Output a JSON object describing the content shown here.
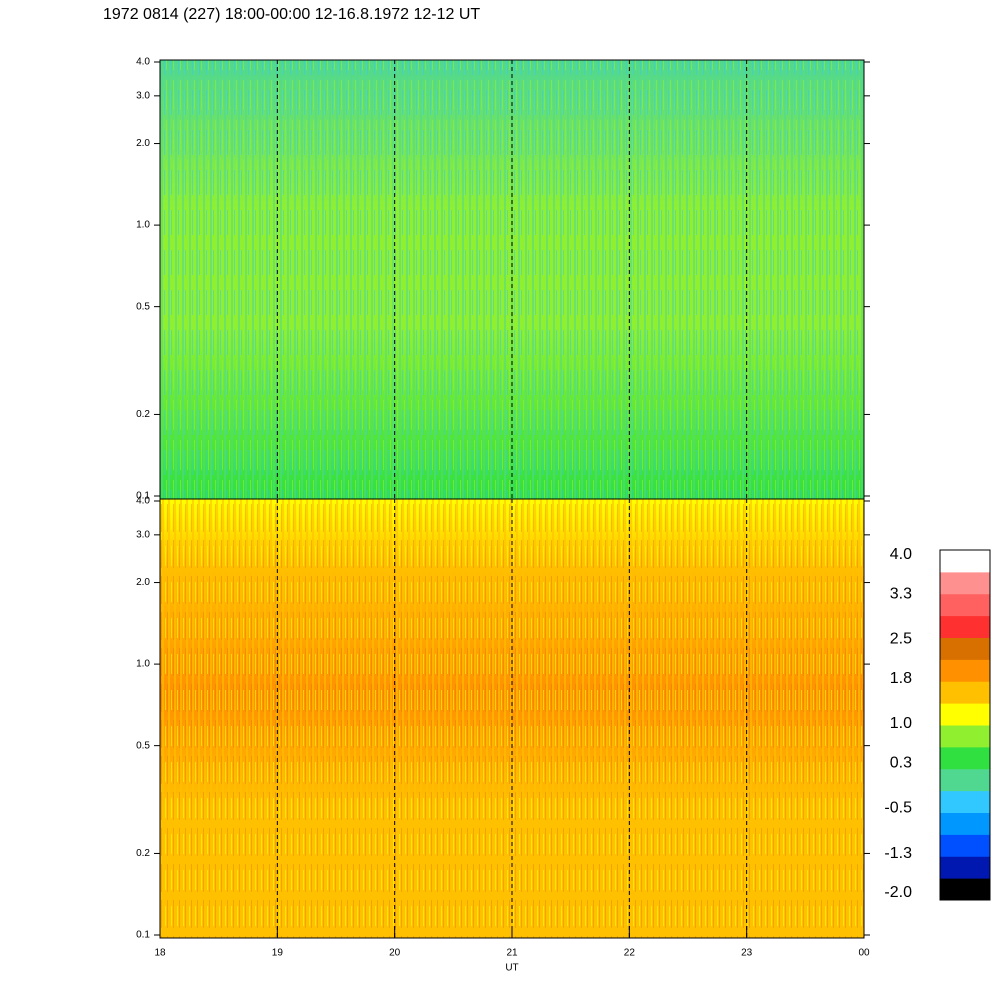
{
  "chart_data": {
    "type": "spectrogram",
    "title": "1972 0814 (227) 18:00-00:00 12-16.8.1972  12-12 UT",
    "xlabel": "UT",
    "xlim": [
      18,
      24
    ],
    "xticks": [
      18,
      19,
      20,
      21,
      22,
      23,
      {
        "value": 24,
        "label": "00"
      }
    ],
    "ylim": [
      0.1,
      4
    ],
    "log_y": true,
    "yticks": [
      0.1,
      0.2,
      0.5,
      {
        "value": 1,
        "label": "1.0"
      },
      {
        "value": 2,
        "label": "2.0"
      },
      {
        "value": 3,
        "label": "3.0"
      },
      {
        "value": 4,
        "label": "4.0"
      }
    ],
    "grid": true,
    "colorbar": {
      "colors": [
        "#000000",
        "#0018b0",
        "#0050ff",
        "#0098ff",
        "#30c8ff",
        "#50d890",
        "#30e040",
        "#90f030",
        "#ffff00",
        "#ffc000",
        "#ff9000",
        "#d87000",
        "#ff3030",
        "#ff6060",
        "#ff9090",
        "#ffffff"
      ],
      "lim": [
        -2,
        4
      ],
      "ticks": [
        {
          "value": -2,
          "label": "-2.0"
        },
        -1.3,
        -0.5,
        0.3,
        {
          "value": 1,
          "label": "1.0"
        },
        1.8,
        2.5,
        3.3,
        {
          "value": 4,
          "label": "4.0"
        }
      ]
    }
  }
}
